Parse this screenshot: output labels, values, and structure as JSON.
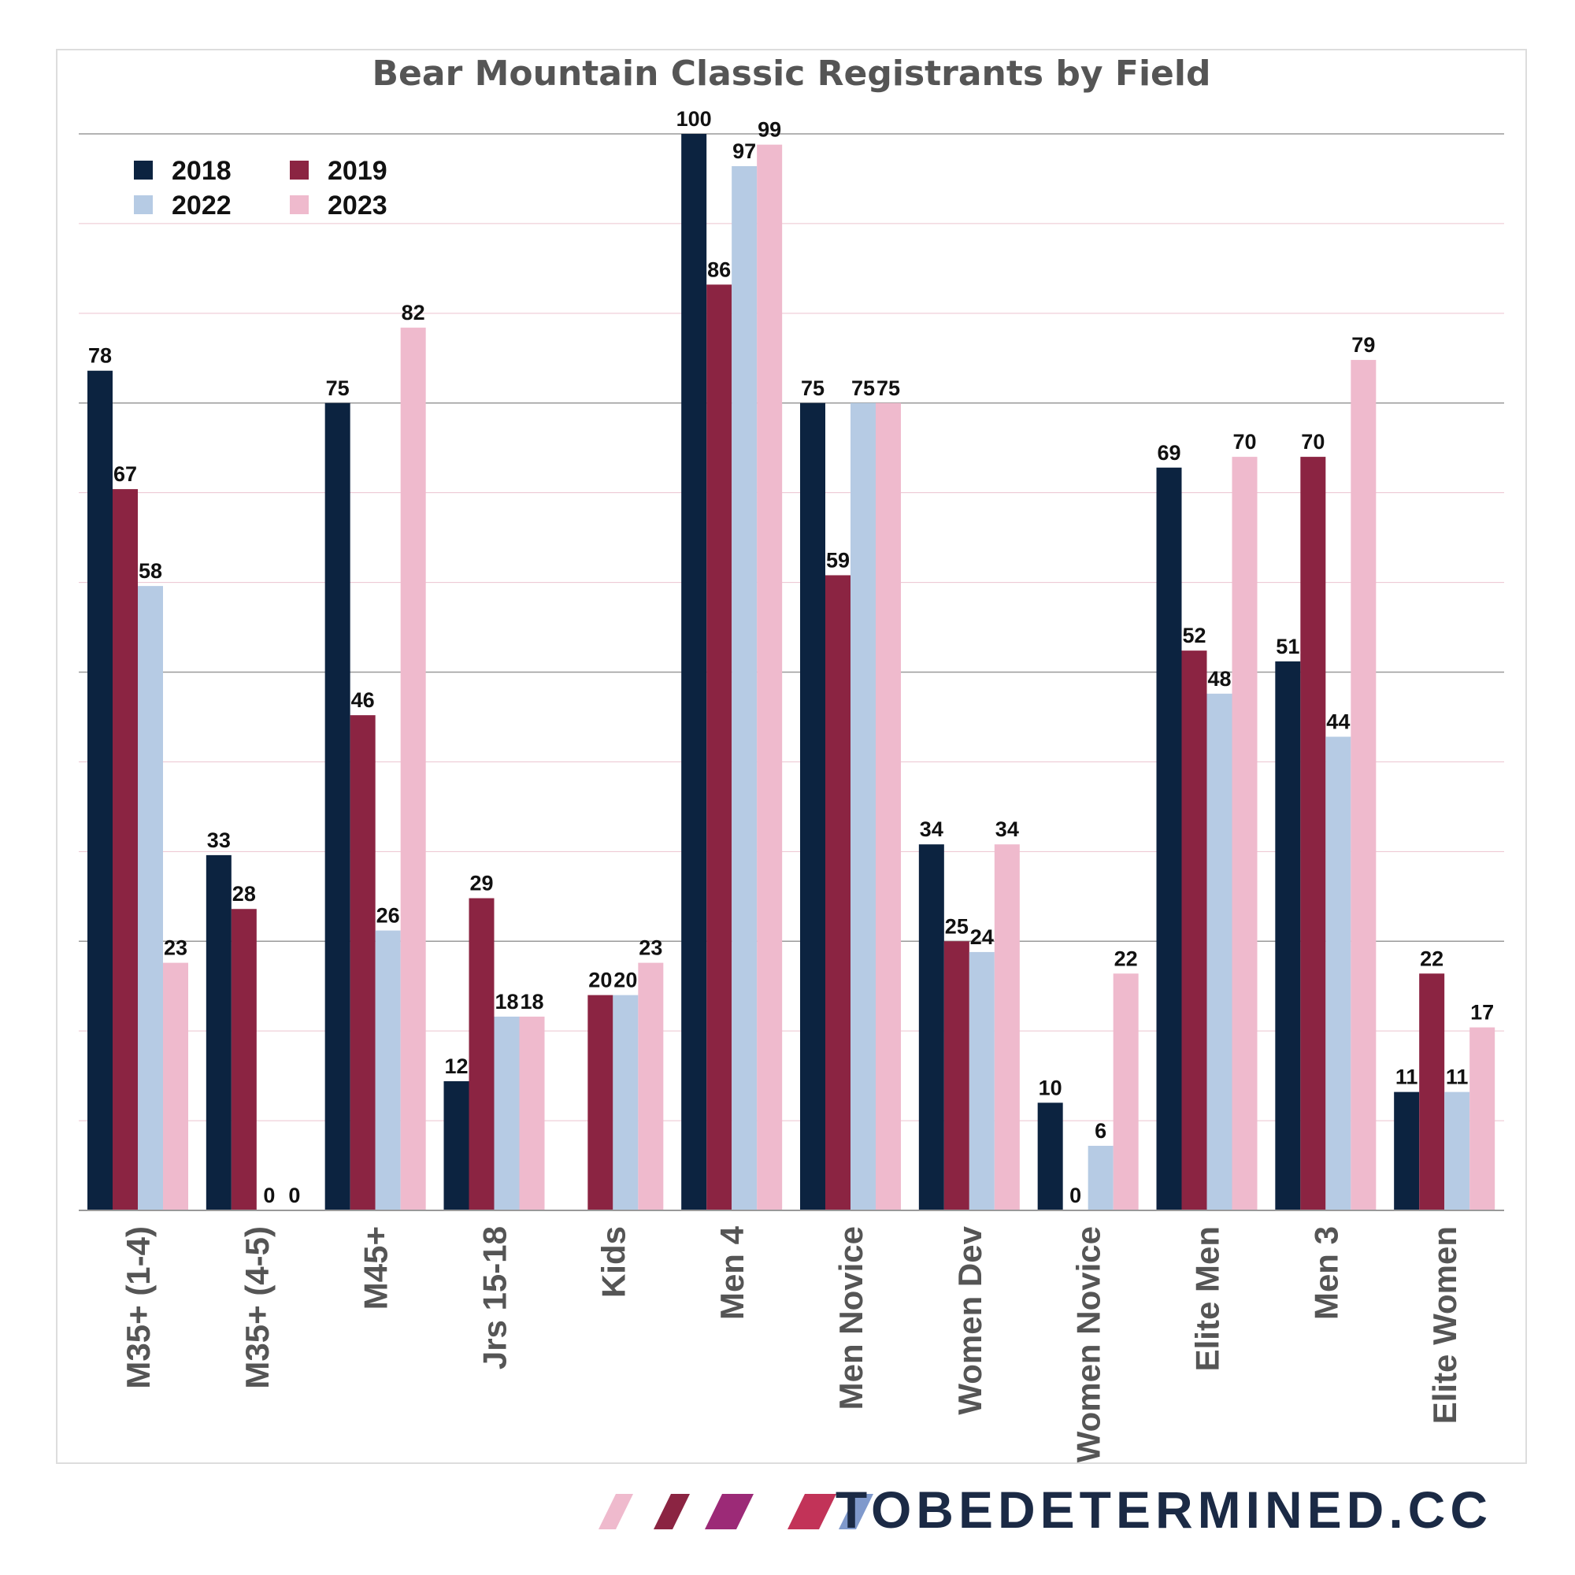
{
  "chart_data": {
    "type": "bar",
    "title": "Bear Mountain Classic Registrants by Field",
    "xlabel": "",
    "ylabel": "",
    "ylim": [
      0,
      100
    ],
    "grid": true,
    "legend_position": "top-left",
    "categories": [
      "M35+ (1-4)",
      "M35+ (4-5)",
      "M45+",
      "Jrs 15-18",
      "Kids",
      "Men 4",
      "Men Novice",
      "Women Dev",
      "Women Novice",
      "Elite Men",
      "Men 3",
      "Elite Women"
    ],
    "series": [
      {
        "name": "2018",
        "color": "#0c2340",
        "values": [
          78,
          33,
          75,
          12,
          null,
          100,
          75,
          34,
          10,
          69,
          51,
          11
        ]
      },
      {
        "name": "2019",
        "color": "#8b2442",
        "values": [
          67,
          28,
          46,
          29,
          20,
          86,
          59,
          25,
          0,
          52,
          70,
          22
        ]
      },
      {
        "name": "2022",
        "color": "#b6cbe4",
        "values": [
          58,
          0,
          26,
          18,
          20,
          97,
          75,
          24,
          6,
          48,
          44,
          11
        ]
      },
      {
        "name": "2023",
        "color": "#efbacd",
        "values": [
          23,
          0,
          82,
          18,
          23,
          99,
          75,
          34,
          22,
          70,
          79,
          17
        ]
      }
    ]
  },
  "branding": {
    "text": "TOBEDETERMINED.CC",
    "text_color": "#1b2a45",
    "stripe_colors": [
      "#efbacd",
      "#8b2442",
      "#9c2a77",
      "#c23358",
      "#7f99cc"
    ]
  }
}
